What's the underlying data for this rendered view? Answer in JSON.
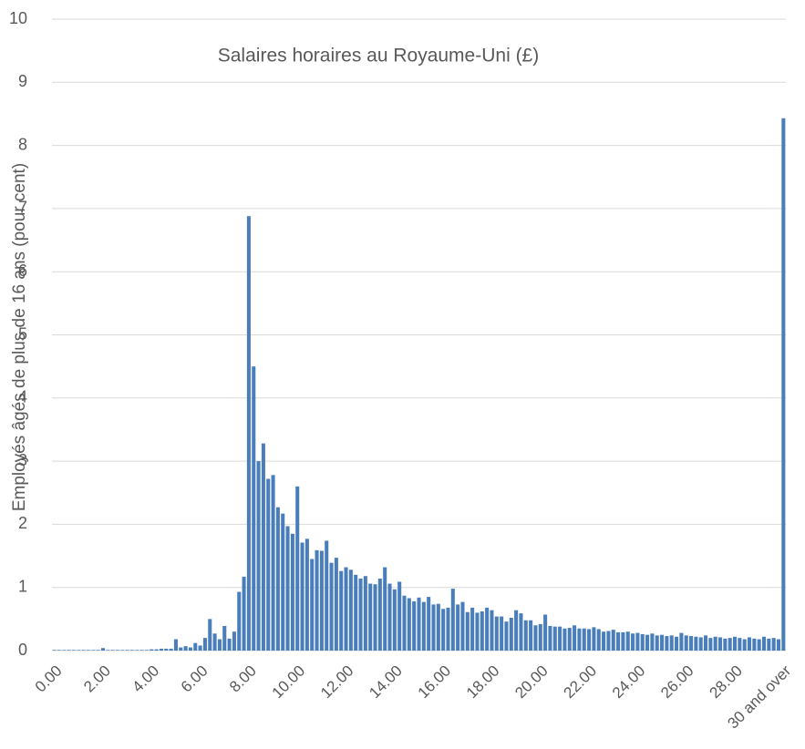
{
  "chart_data": {
    "type": "bar",
    "title": "Salaires horaires au Royaume-Uni (£)",
    "y_label": "Employés âgés de plus de 16 ans (pour cent)",
    "color": "#4a7ebb",
    "grid": true,
    "ylim": [
      0,
      10
    ],
    "yticks": [
      0,
      1,
      2,
      3,
      4,
      5,
      6,
      7,
      8,
      9,
      10
    ],
    "categories": [
      "0.00",
      null,
      null,
      null,
      null,
      null,
      null,
      null,
      null,
      null,
      "2.00",
      null,
      null,
      null,
      null,
      null,
      null,
      null,
      null,
      null,
      "4.00",
      null,
      null,
      null,
      null,
      null,
      null,
      null,
      null,
      null,
      "6.00",
      null,
      null,
      null,
      null,
      null,
      null,
      null,
      null,
      null,
      "8.00",
      null,
      null,
      null,
      null,
      null,
      null,
      null,
      null,
      null,
      "10.00",
      null,
      null,
      null,
      null,
      null,
      null,
      null,
      null,
      null,
      "12.00",
      null,
      null,
      null,
      null,
      null,
      null,
      null,
      null,
      null,
      "14.00",
      null,
      null,
      null,
      null,
      null,
      null,
      null,
      null,
      null,
      "16.00",
      null,
      null,
      null,
      null,
      null,
      null,
      null,
      null,
      null,
      "18.00",
      null,
      null,
      null,
      null,
      null,
      null,
      null,
      null,
      null,
      "20.00",
      null,
      null,
      null,
      null,
      null,
      null,
      null,
      null,
      null,
      "22.00",
      null,
      null,
      null,
      null,
      null,
      null,
      null,
      null,
      null,
      "24.00",
      null,
      null,
      null,
      null,
      null,
      null,
      null,
      null,
      null,
      "26.00",
      null,
      null,
      null,
      null,
      null,
      null,
      null,
      null,
      null,
      "28.00",
      null,
      null,
      null,
      null,
      null,
      null,
      null,
      null,
      null,
      "30 and over"
    ],
    "values": [
      0.01,
      0.01,
      0.01,
      0.01,
      0.01,
      0.01,
      0.01,
      0.01,
      0.01,
      0.01,
      0.04,
      0.01,
      0.01,
      0.01,
      0.01,
      0.01,
      0.01,
      0.01,
      0.01,
      0.01,
      0.02,
      0.02,
      0.03,
      0.03,
      0.03,
      0.18,
      0.05,
      0.07,
      0.05,
      0.12,
      0.08,
      0.2,
      0.5,
      0.27,
      0.18,
      0.39,
      0.19,
      0.3,
      0.93,
      1.17,
      6.88,
      4.5,
      3.0,
      3.28,
      2.72,
      2.78,
      2.27,
      2.17,
      1.97,
      1.85,
      2.6,
      1.71,
      1.77,
      1.45,
      1.59,
      1.58,
      1.74,
      1.39,
      1.47,
      1.26,
      1.32,
      1.28,
      1.2,
      1.14,
      1.18,
      1.06,
      1.05,
      1.14,
      1.32,
      1.06,
      0.97,
      1.09,
      0.87,
      0.83,
      0.78,
      0.84,
      0.77,
      0.85,
      0.73,
      0.74,
      0.66,
      0.68,
      0.98,
      0.73,
      0.77,
      0.61,
      0.68,
      0.6,
      0.62,
      0.68,
      0.64,
      0.54,
      0.54,
      0.46,
      0.52,
      0.64,
      0.59,
      0.48,
      0.48,
      0.4,
      0.42,
      0.57,
      0.39,
      0.38,
      0.38,
      0.35,
      0.36,
      0.4,
      0.35,
      0.35,
      0.34,
      0.37,
      0.34,
      0.3,
      0.31,
      0.33,
      0.29,
      0.29,
      0.3,
      0.27,
      0.28,
      0.26,
      0.25,
      0.27,
      0.24,
      0.25,
      0.23,
      0.24,
      0.22,
      0.28,
      0.24,
      0.23,
      0.22,
      0.21,
      0.24,
      0.2,
      0.22,
      0.21,
      0.19,
      0.2,
      0.22,
      0.2,
      0.18,
      0.21,
      0.19,
      0.18,
      0.22,
      0.19,
      0.2,
      0.18,
      8.43
    ]
  }
}
